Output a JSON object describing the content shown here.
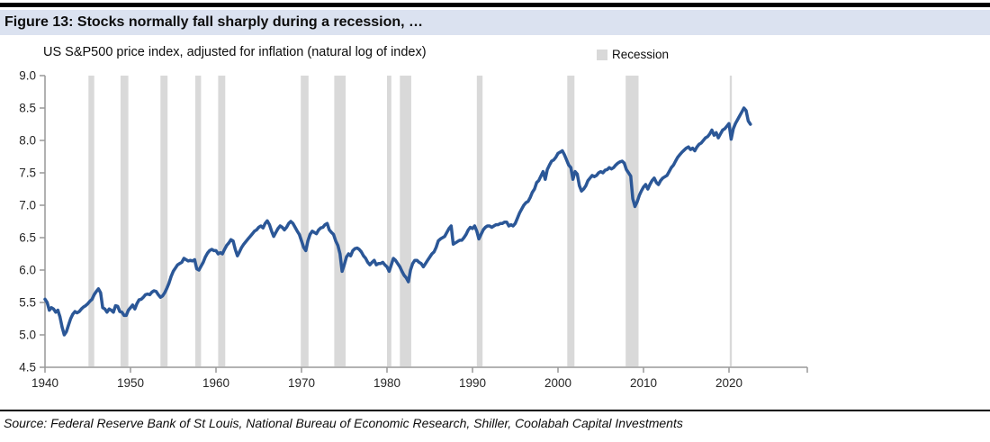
{
  "header": {
    "title": "Figure 13: Stocks normally fall sharply during a recession, …",
    "subtitle": "US S&P500 price index, adjusted for inflation (natural log of index)"
  },
  "legend": {
    "recession_label": "Recession"
  },
  "source": "Source: Federal Reserve Bank of St Louis, National Bureau of Economic Research, Shiller, Coolabah Capital Investments",
  "colors": {
    "line": "#2b5797",
    "recession_band": "#d9d9d9",
    "title_band_bg": "#dbe2f0",
    "axis": "#999999",
    "rule": "#000000"
  },
  "chart_data": {
    "type": "line",
    "title": "US S&P500 price index, adjusted for inflation (natural log of index)",
    "xlabel": "",
    "ylabel": "",
    "legend_position": "top-right",
    "grid": false,
    "x_axis": {
      "min": 1940,
      "max": 2029,
      "tick_values": [
        1940,
        1950,
        1960,
        1970,
        1980,
        1990,
        2000,
        2010,
        2020
      ],
      "tick_labels": [
        "1940",
        "1950",
        "1960",
        "1970",
        "1980",
        "1990",
        "2000",
        "2010",
        "2020"
      ]
    },
    "y_axis": {
      "min": 4.5,
      "max": 9.0,
      "step": 0.5,
      "tick_labels": [
        "4.5",
        "5.0",
        "5.5",
        "6.0",
        "6.5",
        "7.0",
        "7.5",
        "8.0",
        "8.5",
        "9.0"
      ]
    },
    "legend_entries": [
      {
        "label": "Recession",
        "color": "#d9d9d9"
      }
    ],
    "recession_bands": [
      [
        1945.08,
        1945.75
      ],
      [
        1948.83,
        1949.75
      ],
      [
        1953.5,
        1954.33
      ],
      [
        1957.58,
        1958.25
      ],
      [
        1960.25,
        1961.08
      ],
      [
        1969.92,
        1970.83
      ],
      [
        1973.83,
        1975.17
      ],
      [
        1980.0,
        1980.5
      ],
      [
        1981.5,
        1982.83
      ],
      [
        1990.5,
        1991.17
      ],
      [
        2001.08,
        2001.92
      ],
      [
        2007.92,
        2009.42
      ],
      [
        2020.08,
        2020.33
      ]
    ],
    "series": [
      {
        "name": "US S&P500 price index, inflation adjusted (natural log)",
        "color": "#2b5797",
        "x_start": 1940,
        "x_step": 0.25,
        "values": [
          5.55,
          5.5,
          5.38,
          5.42,
          5.4,
          5.35,
          5.38,
          5.28,
          5.12,
          5.0,
          5.05,
          5.15,
          5.25,
          5.32,
          5.36,
          5.34,
          5.36,
          5.4,
          5.43,
          5.45,
          5.48,
          5.52,
          5.55,
          5.62,
          5.67,
          5.71,
          5.65,
          5.42,
          5.4,
          5.35,
          5.4,
          5.38,
          5.35,
          5.45,
          5.44,
          5.36,
          5.35,
          5.3,
          5.3,
          5.38,
          5.42,
          5.46,
          5.4,
          5.48,
          5.54,
          5.55,
          5.58,
          5.62,
          5.63,
          5.62,
          5.66,
          5.68,
          5.67,
          5.62,
          5.58,
          5.6,
          5.65,
          5.72,
          5.8,
          5.9,
          5.98,
          6.03,
          6.08,
          6.1,
          6.12,
          6.18,
          6.16,
          6.14,
          6.15,
          6.14,
          6.16,
          6.02,
          6.0,
          6.06,
          6.12,
          6.2,
          6.26,
          6.3,
          6.32,
          6.3,
          6.3,
          6.25,
          6.27,
          6.25,
          6.32,
          6.38,
          6.42,
          6.47,
          6.45,
          6.32,
          6.22,
          6.28,
          6.35,
          6.4,
          6.44,
          6.48,
          6.52,
          6.56,
          6.6,
          6.62,
          6.66,
          6.68,
          6.65,
          6.72,
          6.76,
          6.7,
          6.6,
          6.52,
          6.58,
          6.64,
          6.68,
          6.66,
          6.62,
          6.66,
          6.72,
          6.75,
          6.72,
          6.66,
          6.6,
          6.55,
          6.45,
          6.35,
          6.3,
          6.45,
          6.55,
          6.6,
          6.58,
          6.56,
          6.62,
          6.65,
          6.66,
          6.7,
          6.72,
          6.62,
          6.58,
          6.55,
          6.45,
          6.38,
          6.25,
          5.98,
          6.08,
          6.2,
          6.25,
          6.22,
          6.3,
          6.33,
          6.34,
          6.32,
          6.28,
          6.22,
          6.18,
          6.12,
          6.08,
          6.12,
          6.15,
          6.08,
          6.1,
          6.1,
          6.12,
          6.08,
          6.05,
          5.98,
          6.08,
          6.18,
          6.15,
          6.1,
          6.05,
          5.98,
          5.92,
          5.88,
          5.82,
          6.0,
          6.1,
          6.15,
          6.15,
          6.12,
          6.1,
          6.05,
          6.1,
          6.15,
          6.2,
          6.25,
          6.28,
          6.35,
          6.45,
          6.48,
          6.5,
          6.52,
          6.58,
          6.64,
          6.68,
          6.4,
          6.42,
          6.44,
          6.46,
          6.46,
          6.5,
          6.55,
          6.62,
          6.66,
          6.64,
          6.68,
          6.6,
          6.48,
          6.55,
          6.62,
          6.66,
          6.68,
          6.68,
          6.66,
          6.68,
          6.7,
          6.7,
          6.72,
          6.72,
          6.74,
          6.74,
          6.68,
          6.7,
          6.68,
          6.72,
          6.8,
          6.88,
          6.94,
          7.0,
          7.04,
          7.06,
          7.12,
          7.2,
          7.25,
          7.35,
          7.38,
          7.45,
          7.52,
          7.4,
          7.55,
          7.62,
          7.68,
          7.7,
          7.74,
          7.8,
          7.82,
          7.84,
          7.78,
          7.7,
          7.62,
          7.58,
          7.4,
          7.52,
          7.48,
          7.3,
          7.22,
          7.25,
          7.3,
          7.38,
          7.42,
          7.46,
          7.44,
          7.46,
          7.5,
          7.52,
          7.5,
          7.54,
          7.55,
          7.58,
          7.56,
          7.58,
          7.62,
          7.65,
          7.67,
          7.68,
          7.65,
          7.55,
          7.5,
          7.45,
          7.1,
          6.98,
          7.05,
          7.15,
          7.22,
          7.28,
          7.32,
          7.25,
          7.32,
          7.38,
          7.42,
          7.35,
          7.32,
          7.38,
          7.42,
          7.44,
          7.46,
          7.52,
          7.58,
          7.62,
          7.68,
          7.74,
          7.78,
          7.82,
          7.85,
          7.88,
          7.9,
          7.86,
          7.88,
          7.84,
          7.9,
          7.94,
          7.96,
          8.0,
          8.04,
          8.06,
          8.1,
          8.16,
          8.08,
          8.12,
          8.04,
          8.1,
          8.16,
          8.18,
          8.22,
          8.26,
          8.02,
          8.18,
          8.26,
          8.32,
          8.38,
          8.44,
          8.5,
          8.46,
          8.3,
          8.25
        ]
      }
    ]
  }
}
